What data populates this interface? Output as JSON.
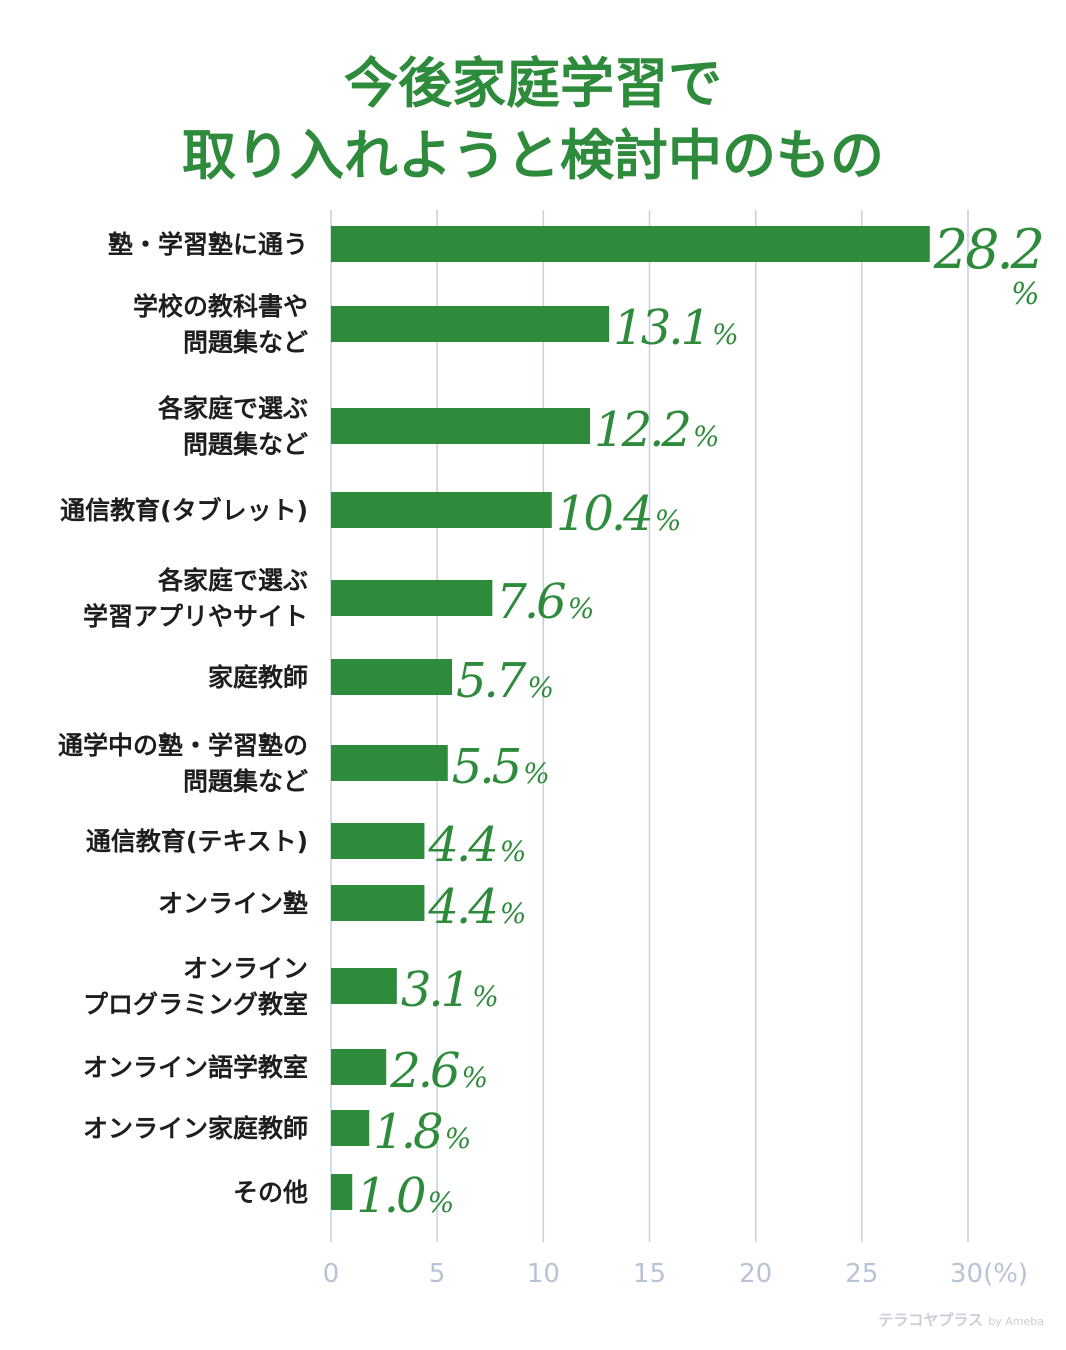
{
  "title_line1": "今後家庭学習で",
  "title_line2": "取り入れようと検討中のもの",
  "watermark": "テラコヤプラス",
  "watermark_by": "by Ameba",
  "chart_data": {
    "type": "bar",
    "orientation": "horizontal",
    "title": "今後家庭学習で取り入れようと検討中のもの",
    "unit_label": "(%)",
    "value_suffix": "%",
    "xlim": [
      0,
      30
    ],
    "ticks": [
      0,
      5,
      10,
      15,
      20,
      25,
      30
    ],
    "tick_labels": [
      "0",
      "5",
      "10",
      "15",
      "20",
      "25",
      "30"
    ],
    "grid": true,
    "bar_color": "#2e8b3c",
    "grid_color": "#c5cfdf",
    "categories": [
      [
        "塾・学習塾に通う"
      ],
      [
        "学校の教科書や",
        "問題集など"
      ],
      [
        "各家庭で選ぶ",
        "問題集など"
      ],
      [
        "通信教育(タブレット)"
      ],
      [
        "各家庭で選ぶ",
        "学習アプリやサイト"
      ],
      [
        "家庭教師"
      ],
      [
        "通学中の塾・学習塾の",
        "問題集など"
      ],
      [
        "通信教育(テキスト)"
      ],
      [
        "オンライン塾"
      ],
      [
        "オンライン",
        "プログラミング教室"
      ],
      [
        "オンライン語学教室"
      ],
      [
        "オンライン家庭教師"
      ],
      [
        "その他"
      ]
    ],
    "values": [
      28.2,
      13.1,
      12.2,
      10.4,
      7.6,
      5.7,
      5.5,
      4.4,
      4.4,
      3.1,
      2.6,
      1.8,
      1.0
    ],
    "value_labels": [
      "28.2",
      "13.1",
      "12.2",
      "10.4",
      "7.6",
      "5.7",
      "5.5",
      "4.4",
      "4.4",
      "3.1",
      "2.6",
      "1.8",
      "1.0"
    ]
  }
}
